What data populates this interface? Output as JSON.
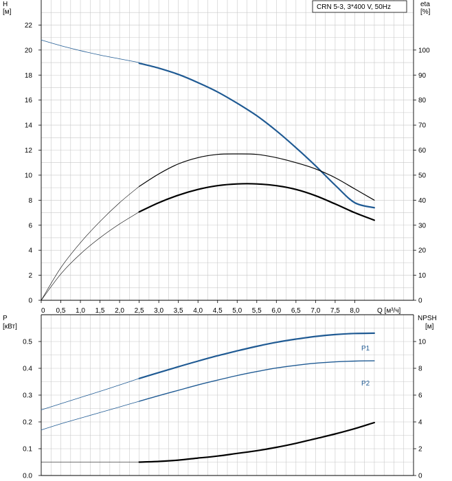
{
  "title_box": "CRN 5-3, 3*400 V, 50Hz",
  "colors": {
    "blue": "#1f5a93",
    "black": "#000000",
    "grid": "#c8c8c8"
  },
  "chart_data": [
    {
      "type": "line",
      "panel": "head-efficiency",
      "axes": {
        "x": {
          "label": "Q [м³/ч]",
          "lim": [
            0,
            9.5
          ],
          "ticks": [
            0,
            0.5,
            1.0,
            1.5,
            2.0,
            2.5,
            3.0,
            3.5,
            4.0,
            4.5,
            5.0,
            5.5,
            6.0,
            6.5,
            7.0,
            7.5,
            8.0
          ],
          "tick_labels": [
            "0",
            "0,5",
            "1,0",
            "1,5",
            "2,0",
            "2,5",
            "3,0",
            "3,5",
            "4,0",
            "4,5",
            "5,0",
            "5,5",
            "6,0",
            "6,5",
            "7,0",
            "7,5",
            "8,0"
          ]
        },
        "y_left": {
          "label_top": "H",
          "label_unit": "[м]",
          "lim": [
            0,
            24
          ],
          "ticks": [
            0,
            2,
            4,
            6,
            8,
            10,
            12,
            14,
            16,
            18,
            20,
            22
          ]
        },
        "y_right": {
          "label_top": "eta",
          "label_unit": "[%]",
          "lim": [
            0,
            120
          ],
          "ticks": [
            0,
            10,
            20,
            30,
            40,
            50,
            60,
            70,
            80,
            90,
            100
          ]
        }
      },
      "grid": true,
      "series": [
        {
          "key": "H",
          "axis": "left",
          "color": "blue",
          "x": [
            0,
            0.5,
            1.0,
            1.5,
            2.0,
            2.5
          ],
          "y": [
            20.8,
            20.35,
            19.95,
            19.6,
            19.3,
            19.0
          ],
          "width": 0.8
        },
        {
          "key": "H",
          "axis": "left",
          "color": "blue",
          "x": [
            2.5,
            3.0,
            3.5,
            4.0,
            4.5,
            5.0,
            5.5,
            6.0,
            6.5,
            7.0,
            7.5,
            8.0,
            8.5
          ],
          "y": [
            18.95,
            18.55,
            18.05,
            17.4,
            16.65,
            15.75,
            14.75,
            13.55,
            12.2,
            10.75,
            9.2,
            7.8,
            7.4
          ],
          "width": 2.2
        },
        {
          "key": "eta1",
          "axis": "right",
          "color": "black",
          "x": [
            0,
            0.5,
            1.0,
            1.5,
            2.0,
            2.5
          ],
          "y": [
            0,
            13,
            23,
            31.5,
            39,
            45.5
          ],
          "width": 0.6
        },
        {
          "key": "eta1",
          "axis": "right",
          "color": "black",
          "x": [
            2.5,
            3.0,
            3.5,
            4.0,
            4.5,
            5.0,
            5.5,
            6.0,
            6.5,
            7.0,
            7.5,
            8.0,
            8.5
          ],
          "y": [
            45.5,
            50.5,
            54.5,
            57,
            58.3,
            58.5,
            58.3,
            57,
            55,
            52.5,
            49,
            44.5,
            40
          ],
          "width": 1.2
        },
        {
          "key": "eta2",
          "axis": "right",
          "color": "black",
          "x": [
            0,
            0.5,
            1.0,
            1.5,
            2.0,
            2.5
          ],
          "y": [
            0,
            10.5,
            18.5,
            25,
            30.5,
            35.3
          ],
          "width": 0.6
        },
        {
          "key": "eta2",
          "axis": "right",
          "color": "black",
          "x": [
            2.5,
            3.0,
            3.5,
            4.0,
            4.5,
            5.0,
            5.5,
            6.0,
            6.5,
            7.0,
            7.5,
            8.0,
            8.5
          ],
          "y": [
            35.3,
            39,
            42,
            44.3,
            45.8,
            46.5,
            46.5,
            45.8,
            44.3,
            41.8,
            38.5,
            35,
            32
          ],
          "width": 2.2
        }
      ]
    },
    {
      "type": "line",
      "panel": "power-npsh",
      "axes": {
        "x": {
          "lim": [
            0,
            9.5
          ]
        },
        "y_left": {
          "label_top": "P",
          "label_unit": "[кВт]",
          "lim": [
            0,
            0.6
          ],
          "ticks": [
            0.0,
            0.1,
            0.2,
            0.3,
            0.4,
            0.5
          ],
          "tick_labels": [
            "0.0",
            "0.1",
            "0.2",
            "0.3",
            "0.4",
            "0.5"
          ]
        },
        "y_right": {
          "label_top": "NPSH",
          "label_unit": "[м]",
          "lim": [
            0,
            12
          ],
          "ticks": [
            0,
            2,
            4,
            6,
            8,
            10
          ]
        }
      },
      "grid": true,
      "series": [
        {
          "key": "P1",
          "name": "P1",
          "axis": "left",
          "color": "blue",
          "x": [
            0,
            0.5,
            1.0,
            1.5,
            2.0,
            2.5
          ],
          "y": [
            0.245,
            0.268,
            0.291,
            0.314,
            0.338,
            0.362
          ],
          "width": 0.8
        },
        {
          "key": "P1",
          "name": "P1",
          "axis": "left",
          "color": "blue",
          "x": [
            2.5,
            3.0,
            3.5,
            4.0,
            4.5,
            5.0,
            5.5,
            6.0,
            6.5,
            7.0,
            7.5,
            8.0,
            8.5
          ],
          "y": [
            0.362,
            0.384,
            0.406,
            0.427,
            0.447,
            0.465,
            0.482,
            0.497,
            0.509,
            0.519,
            0.526,
            0.53,
            0.531
          ],
          "width": 2.2
        },
        {
          "key": "P2",
          "name": "P2",
          "axis": "left",
          "color": "blue",
          "x": [
            0,
            0.5,
            1.0,
            1.5,
            2.0,
            2.5
          ],
          "y": [
            0.17,
            0.193,
            0.214,
            0.235,
            0.256,
            0.277
          ],
          "width": 0.8
        },
        {
          "key": "P2",
          "name": "P2",
          "axis": "left",
          "color": "blue",
          "x": [
            2.5,
            3.0,
            3.5,
            4.0,
            4.5,
            5.0,
            5.5,
            6.0,
            6.5,
            7.0,
            7.5,
            8.0,
            8.5
          ],
          "y": [
            0.277,
            0.298,
            0.318,
            0.338,
            0.356,
            0.373,
            0.388,
            0.401,
            0.411,
            0.419,
            0.424,
            0.427,
            0.428
          ],
          "width": 1.4
        },
        {
          "key": "NPSH",
          "axis": "right",
          "color": "black",
          "x": [
            0,
            0.5,
            1.0,
            1.5,
            2.0,
            2.5
          ],
          "y": [
            1.0,
            1.0,
            1.0,
            1.0,
            1.0,
            1.0
          ],
          "width": 0.6
        },
        {
          "key": "NPSH",
          "axis": "right",
          "color": "black",
          "x": [
            2.5,
            3.0,
            3.5,
            4.0,
            4.5,
            5.0,
            5.5,
            6.0,
            6.5,
            7.0,
            7.5,
            8.0,
            8.5
          ],
          "y": [
            1.0,
            1.05,
            1.15,
            1.3,
            1.45,
            1.65,
            1.85,
            2.1,
            2.4,
            2.75,
            3.1,
            3.5,
            3.95
          ],
          "width": 2.2
        }
      ]
    }
  ]
}
